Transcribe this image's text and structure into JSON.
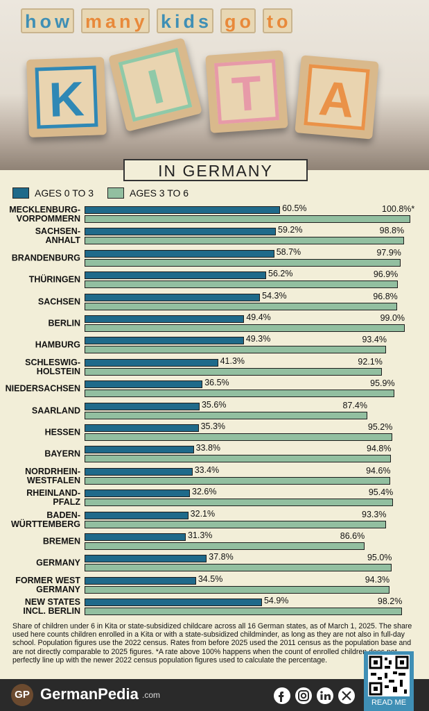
{
  "header": {
    "title_words": [
      "how",
      "many",
      "kids",
      "go",
      "to"
    ],
    "big_blocks": [
      "K",
      "I",
      "T",
      "A"
    ],
    "subtitle": "IN GERMANY"
  },
  "chart_data": {
    "type": "bar",
    "orientation": "horizontal",
    "categories": [
      "MECKLENBURG-\nVORPOMMERN",
      "SACHSEN-\nANHALT",
      "BRANDENBURG",
      "THÜRINGEN",
      "SACHSEN",
      "BERLIN",
      "HAMBURG",
      "SCHLESWIG-\nHOLSTEIN",
      "NIEDERSACHSEN",
      "SAARLAND",
      "HESSEN",
      "BAYERN",
      "NORDRHEIN-\nWESTFALEN",
      "RHEINLAND-\nPFALZ",
      "BADEN-\nWÜRTTEMBERG",
      "BREMEN",
      "GERMANY",
      "FORMER WEST\nGERMANY",
      "NEW STATES\nINCL. BERLIN"
    ],
    "series": [
      {
        "name": "AGES 0 TO 3",
        "color": "#1f6a8a",
        "values": [
          60.5,
          59.2,
          58.7,
          56.2,
          54.3,
          49.4,
          49.3,
          41.3,
          36.5,
          35.6,
          35.3,
          33.8,
          33.4,
          32.6,
          32.1,
          31.3,
          37.8,
          34.5,
          54.9
        ],
        "value_labels": [
          "60.5%",
          "59.2%",
          "58.7%",
          "56.2%",
          "54.3%",
          "49.4%",
          "49.3%",
          "41.3%",
          "36.5%",
          "35.6%",
          "35.3%",
          "33.8%",
          "33.4%",
          "32.6%",
          "32.1%",
          "31.3%",
          "37.8%",
          "34.5%",
          "54.9%"
        ]
      },
      {
        "name": "AGES 3 TO 6",
        "color": "#92bfa0",
        "values": [
          100.8,
          98.8,
          97.9,
          96.9,
          96.8,
          99.0,
          93.4,
          92.1,
          95.9,
          87.4,
          95.2,
          94.8,
          94.6,
          95.4,
          93.3,
          86.6,
          95.0,
          94.3,
          98.2
        ],
        "value_labels": [
          "100.8%*",
          "98.8%",
          "97.9%",
          "96.9%",
          "96.8%",
          "99.0%",
          "93.4%",
          "92.1%",
          "95.9%",
          "87.4%",
          "95.2%",
          "94.8%",
          "94.6%",
          "95.4%",
          "93.3%",
          "86.6%",
          "95.0%",
          "94.3%",
          "98.2%"
        ]
      }
    ],
    "legend": "top-left",
    "note": "Share of children under 6 in Kita or state-subsidized childcare across all 16 German states, as of March 1, 2025. The share used here counts children enrolled in a Kita or with a state-subsidized childminder, as long as they are not also in full-day school. Population figures use the 2022 census. Rates from before 2025 used the 2011 census as the population base and are not directly comparable to 2025 figures. *A rate above 100% happens when the count of enrolled children does not perfectly line up with the newer 2022 census population figures used to calculate the percentage."
  },
  "footer": {
    "logo": "GP",
    "brand": "GermanPedia",
    "domain": ".com",
    "qr_caption": "READ ME"
  }
}
